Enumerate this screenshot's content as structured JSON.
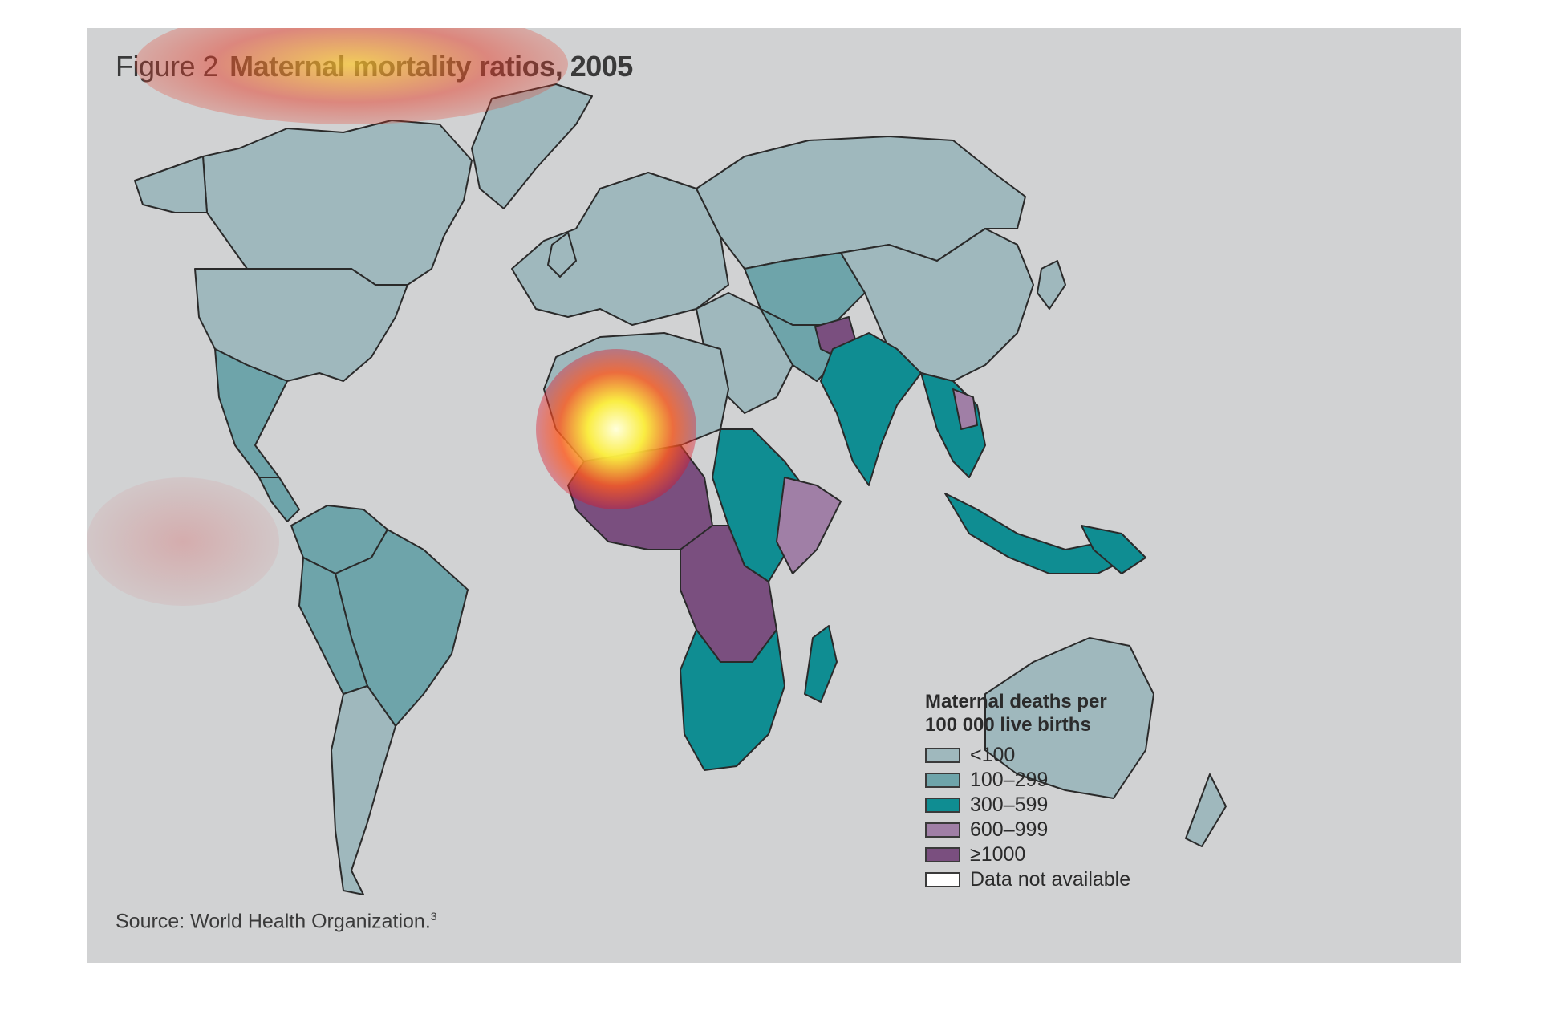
{
  "figure": {
    "label": "Figure 2",
    "title": "Maternal mortality ratios, 2005",
    "source": "Source: World Health Organization.",
    "source_ref": "3"
  },
  "legend": {
    "title": "Maternal deaths per 100 000 live births",
    "items": [
      {
        "label": "<100",
        "color": "#9fb8bd"
      },
      {
        "label": "100–299",
        "color": "#6ea4aa"
      },
      {
        "label": "300–599",
        "color": "#0f8d92"
      },
      {
        "label": "600–999",
        "color": "#a07fa6"
      },
      {
        "label": "≥1000",
        "color": "#7a4f7f"
      },
      {
        "label": "Data not available",
        "color": "#ffffff"
      }
    ]
  },
  "background_color": "#d1d2d3"
}
